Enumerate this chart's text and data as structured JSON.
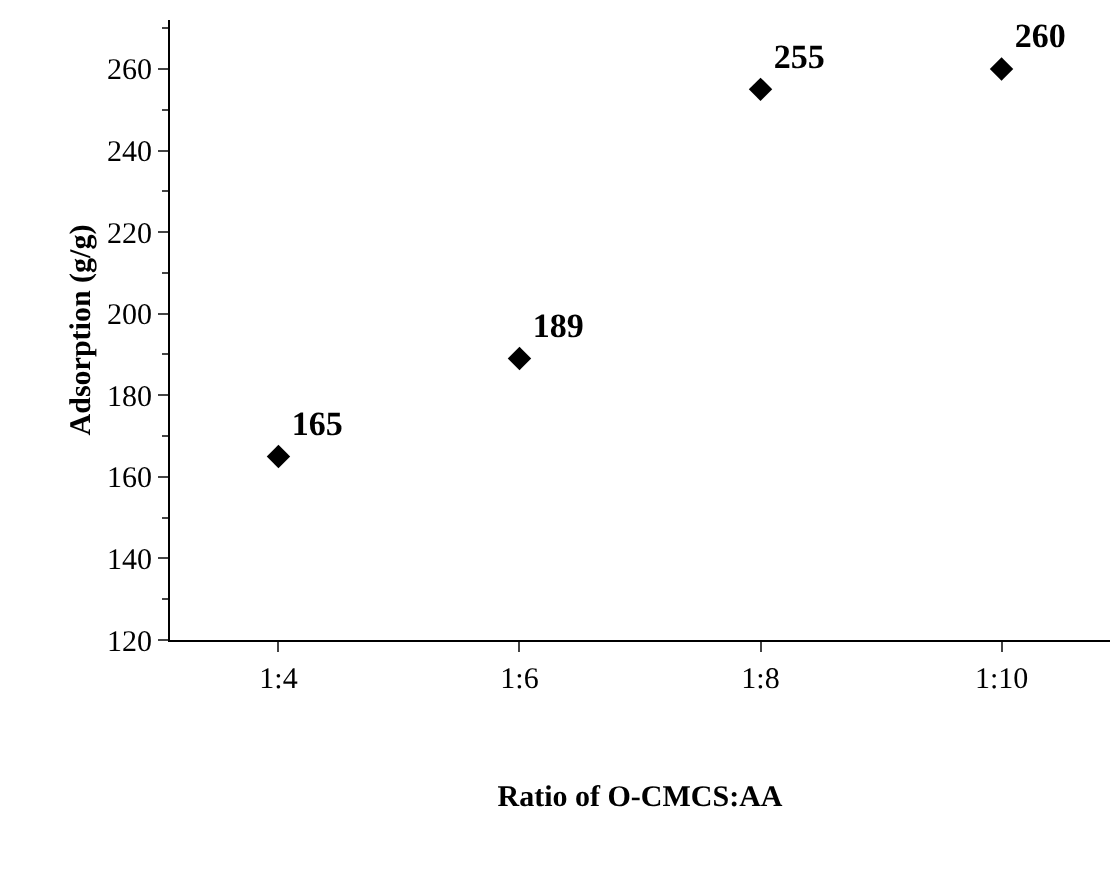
{
  "chart_data": {
    "type": "scatter",
    "xlabel": "Ratio of O-CMCS:AA",
    "ylabel": "Adsorption (g/g)",
    "categories": [
      "1:4",
      "1:6",
      "1:8",
      "1:10"
    ],
    "series": [
      {
        "color": "#000000",
        "values": [
          165,
          189,
          255,
          260
        ]
      }
    ],
    "ylim": [
      120,
      272
    ],
    "yticks": [
      120,
      140,
      160,
      180,
      200,
      220,
      240,
      260
    ],
    "marker": "diamond",
    "data_labels": true,
    "grid": false
  }
}
